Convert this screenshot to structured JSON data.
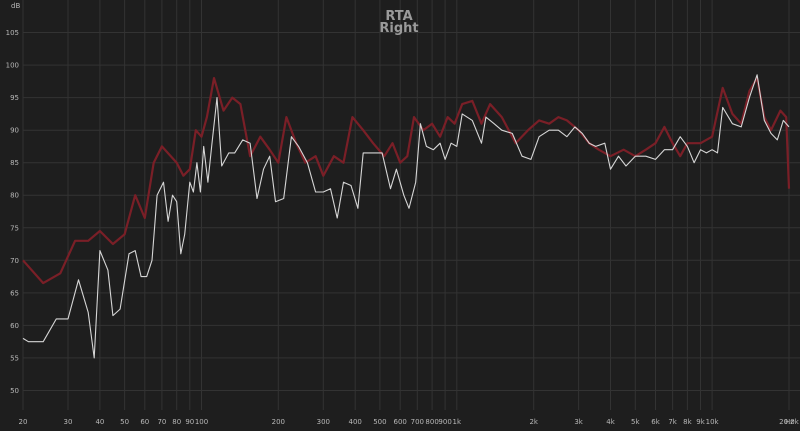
{
  "chart_data": {
    "type": "line",
    "title": "RTA",
    "subtitle": "Right",
    "y_unit": "dB",
    "x_unit": "Hz",
    "x_scale": "log",
    "xlim": [
      20,
      20000
    ],
    "ylim": [
      47,
      110
    ],
    "grid": true,
    "x_ticks": [
      {
        "value": 20,
        "label": "20"
      },
      {
        "value": 30,
        "label": "30"
      },
      {
        "value": 40,
        "label": "40"
      },
      {
        "value": 50,
        "label": "50"
      },
      {
        "value": 60,
        "label": "60"
      },
      {
        "value": 70,
        "label": "70"
      },
      {
        "value": 80,
        "label": "80"
      },
      {
        "value": 90,
        "label": "90"
      },
      {
        "value": 100,
        "label": "100"
      },
      {
        "value": 200,
        "label": "200"
      },
      {
        "value": 300,
        "label": "300"
      },
      {
        "value": 400,
        "label": "400"
      },
      {
        "value": 500,
        "label": "500"
      },
      {
        "value": 600,
        "label": "600"
      },
      {
        "value": 700,
        "label": "700"
      },
      {
        "value": 800,
        "label": "800"
      },
      {
        "value": 900,
        "label": "900"
      },
      {
        "value": 1000,
        "label": "1k"
      },
      {
        "value": 2000,
        "label": "2k"
      },
      {
        "value": 3000,
        "label": "3k"
      },
      {
        "value": 4000,
        "label": "4k"
      },
      {
        "value": 5000,
        "label": "5k"
      },
      {
        "value": 6000,
        "label": "6k"
      },
      {
        "value": 7000,
        "label": "7k"
      },
      {
        "value": 8000,
        "label": "8k"
      },
      {
        "value": 9000,
        "label": "9k"
      },
      {
        "value": 10000,
        "label": "10k"
      },
      {
        "value": 20000,
        "label": "20.0k"
      }
    ],
    "y_ticks": [
      50,
      55,
      60,
      65,
      70,
      75,
      80,
      85,
      90,
      95,
      100,
      105
    ],
    "series": [
      {
        "color": "#7a1f27",
        "points": [
          [
            20,
            70
          ],
          [
            24,
            66.5
          ],
          [
            28,
            68
          ],
          [
            32,
            73
          ],
          [
            36,
            73
          ],
          [
            40,
            74.5
          ],
          [
            45,
            72.5
          ],
          [
            50,
            74
          ],
          [
            55,
            80
          ],
          [
            60,
            76.5
          ],
          [
            65,
            85
          ],
          [
            70,
            87.5
          ],
          [
            80,
            85
          ],
          [
            85,
            83
          ],
          [
            90,
            84
          ],
          [
            95,
            90
          ],
          [
            100,
            89
          ],
          [
            105,
            92
          ],
          [
            112,
            98
          ],
          [
            122,
            93
          ],
          [
            132,
            95
          ],
          [
            142,
            94
          ],
          [
            155,
            86
          ],
          [
            170,
            89
          ],
          [
            185,
            87
          ],
          [
            200,
            85
          ],
          [
            215,
            92
          ],
          [
            235,
            88
          ],
          [
            255,
            85
          ],
          [
            280,
            86
          ],
          [
            300,
            83
          ],
          [
            330,
            86
          ],
          [
            360,
            85
          ],
          [
            390,
            92
          ],
          [
            430,
            90
          ],
          [
            470,
            88
          ],
          [
            520,
            86
          ],
          [
            560,
            88
          ],
          [
            600,
            85
          ],
          [
            640,
            86
          ],
          [
            680,
            92
          ],
          [
            740,
            90
          ],
          [
            800,
            91
          ],
          [
            860,
            89
          ],
          [
            920,
            92
          ],
          [
            980,
            91
          ],
          [
            1050,
            94
          ],
          [
            1150,
            94.5
          ],
          [
            1250,
            91
          ],
          [
            1350,
            94
          ],
          [
            1500,
            92
          ],
          [
            1700,
            88
          ],
          [
            1900,
            90
          ],
          [
            2100,
            91.5
          ],
          [
            2300,
            91
          ],
          [
            2500,
            92
          ],
          [
            2700,
            91.5
          ],
          [
            3000,
            90
          ],
          [
            3300,
            88
          ],
          [
            3600,
            87
          ],
          [
            4000,
            86
          ],
          [
            4500,
            87
          ],
          [
            5000,
            86
          ],
          [
            5500,
            87
          ],
          [
            6000,
            88
          ],
          [
            6500,
            90.5
          ],
          [
            7000,
            88
          ],
          [
            7500,
            86
          ],
          [
            8000,
            88
          ],
          [
            9000,
            88
          ],
          [
            10000,
            89
          ],
          [
            11000,
            96.5
          ],
          [
            12000,
            92.5
          ],
          [
            13000,
            91
          ],
          [
            14000,
            96
          ],
          [
            15000,
            98
          ],
          [
            16000,
            92
          ],
          [
            17000,
            90
          ],
          [
            18500,
            93
          ],
          [
            19500,
            92
          ],
          [
            20000,
            81
          ]
        ]
      },
      {
        "color": "#d6d6d6",
        "points": [
          [
            20,
            58
          ],
          [
            21,
            57.5
          ],
          [
            24,
            57.5
          ],
          [
            27,
            61
          ],
          [
            30,
            61
          ],
          [
            33,
            67
          ],
          [
            36,
            62
          ],
          [
            38,
            55
          ],
          [
            40,
            71.5
          ],
          [
            43,
            68.5
          ],
          [
            45,
            61.5
          ],
          [
            48,
            62.5
          ],
          [
            52,
            71
          ],
          [
            55,
            71.5
          ],
          [
            58,
            67.5
          ],
          [
            61,
            67.5
          ],
          [
            64,
            70
          ],
          [
            67,
            80
          ],
          [
            71,
            82
          ],
          [
            74,
            76
          ],
          [
            77,
            80
          ],
          [
            80,
            79
          ],
          [
            83,
            71
          ],
          [
            86,
            74
          ],
          [
            90,
            82
          ],
          [
            93,
            80.5
          ],
          [
            96,
            85
          ],
          [
            99,
            80.5
          ],
          [
            102,
            87.5
          ],
          [
            106,
            82
          ],
          [
            110,
            88
          ],
          [
            115,
            95
          ],
          [
            120,
            84.5
          ],
          [
            128,
            86.5
          ],
          [
            135,
            86.5
          ],
          [
            145,
            88.5
          ],
          [
            155,
            88
          ],
          [
            165,
            79.5
          ],
          [
            175,
            84
          ],
          [
            185,
            86
          ],
          [
            195,
            79
          ],
          [
            210,
            79.5
          ],
          [
            225,
            89
          ],
          [
            240,
            87.5
          ],
          [
            260,
            85
          ],
          [
            280,
            80.5
          ],
          [
            300,
            80.5
          ],
          [
            320,
            81
          ],
          [
            340,
            76.5
          ],
          [
            360,
            82
          ],
          [
            385,
            81.5
          ],
          [
            410,
            78
          ],
          [
            430,
            86.5
          ],
          [
            470,
            86.5
          ],
          [
            510,
            86.5
          ],
          [
            550,
            81
          ],
          [
            580,
            84
          ],
          [
            620,
            80
          ],
          [
            650,
            78
          ],
          [
            690,
            82
          ],
          [
            720,
            91
          ],
          [
            760,
            87.5
          ],
          [
            810,
            87
          ],
          [
            860,
            88
          ],
          [
            900,
            85.5
          ],
          [
            950,
            88
          ],
          [
            1000,
            87.5
          ],
          [
            1050,
            92.5
          ],
          [
            1150,
            91.5
          ],
          [
            1250,
            88
          ],
          [
            1300,
            92
          ],
          [
            1400,
            91
          ],
          [
            1500,
            90
          ],
          [
            1650,
            89.5
          ],
          [
            1800,
            86
          ],
          [
            1950,
            85.5
          ],
          [
            2100,
            89
          ],
          [
            2300,
            90
          ],
          [
            2500,
            90
          ],
          [
            2700,
            89
          ],
          [
            2900,
            90.5
          ],
          [
            3100,
            89.5
          ],
          [
            3300,
            88
          ],
          [
            3500,
            87.5
          ],
          [
            3800,
            88
          ],
          [
            4000,
            84
          ],
          [
            4300,
            86
          ],
          [
            4600,
            84.5
          ],
          [
            5000,
            86
          ],
          [
            5500,
            86
          ],
          [
            6000,
            85.5
          ],
          [
            6500,
            87
          ],
          [
            7000,
            87
          ],
          [
            7500,
            89
          ],
          [
            8000,
            87.5
          ],
          [
            8500,
            85
          ],
          [
            9000,
            87
          ],
          [
            9500,
            86.5
          ],
          [
            10000,
            87
          ],
          [
            10500,
            86.5
          ],
          [
            11000,
            93.5
          ],
          [
            12000,
            91
          ],
          [
            13000,
            90.5
          ],
          [
            14000,
            95
          ],
          [
            15000,
            98.5
          ],
          [
            16000,
            91.5
          ],
          [
            17000,
            89.5
          ],
          [
            18000,
            88.5
          ],
          [
            19000,
            91.5
          ],
          [
            20000,
            90.5
          ]
        ]
      }
    ]
  }
}
